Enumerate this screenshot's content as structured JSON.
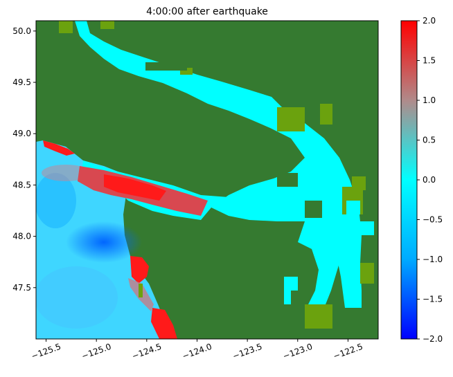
{
  "chart_data": {
    "type": "heatmap",
    "title": "4:00:00 after earthquake",
    "xlabel": "",
    "ylabel": "",
    "xlim": [
      -125.6,
      -122.2
    ],
    "ylim": [
      47.0,
      50.1
    ],
    "x_ticks": [
      -125.5,
      -125.0,
      -124.5,
      -124.0,
      -123.5,
      -123.0,
      -122.5
    ],
    "x_tick_labels": [
      "−125.5",
      "−125.0",
      "−124.5",
      "−124.0",
      "−123.5",
      "−123.0",
      "−122.5"
    ],
    "y_ticks": [
      47.5,
      48.0,
      48.5,
      49.0,
      49.5,
      50.0
    ],
    "y_tick_labels": [
      "47.5",
      "48.0",
      "48.5",
      "49.0",
      "49.5",
      "50.0"
    ],
    "colorbar": {
      "min": -2.0,
      "max": 2.0,
      "ticks": [
        -2.0,
        -1.5,
        -1.0,
        -0.5,
        0.0,
        0.5,
        1.0,
        1.5,
        2.0
      ],
      "tick_labels": [
        "−2.0",
        "−1.5",
        "−1.0",
        "−0.5",
        "0.0",
        "0.5",
        "1.0",
        "1.5",
        "2.0"
      ],
      "colors": [
        "#0000ff",
        "#00aaff",
        "#00ffff",
        "#b08a8a",
        "#ff0000"
      ]
    },
    "colors": {
      "land": "#357a30",
      "land_low": "#6ba20e",
      "water_zero": "#00ffff"
    }
  }
}
